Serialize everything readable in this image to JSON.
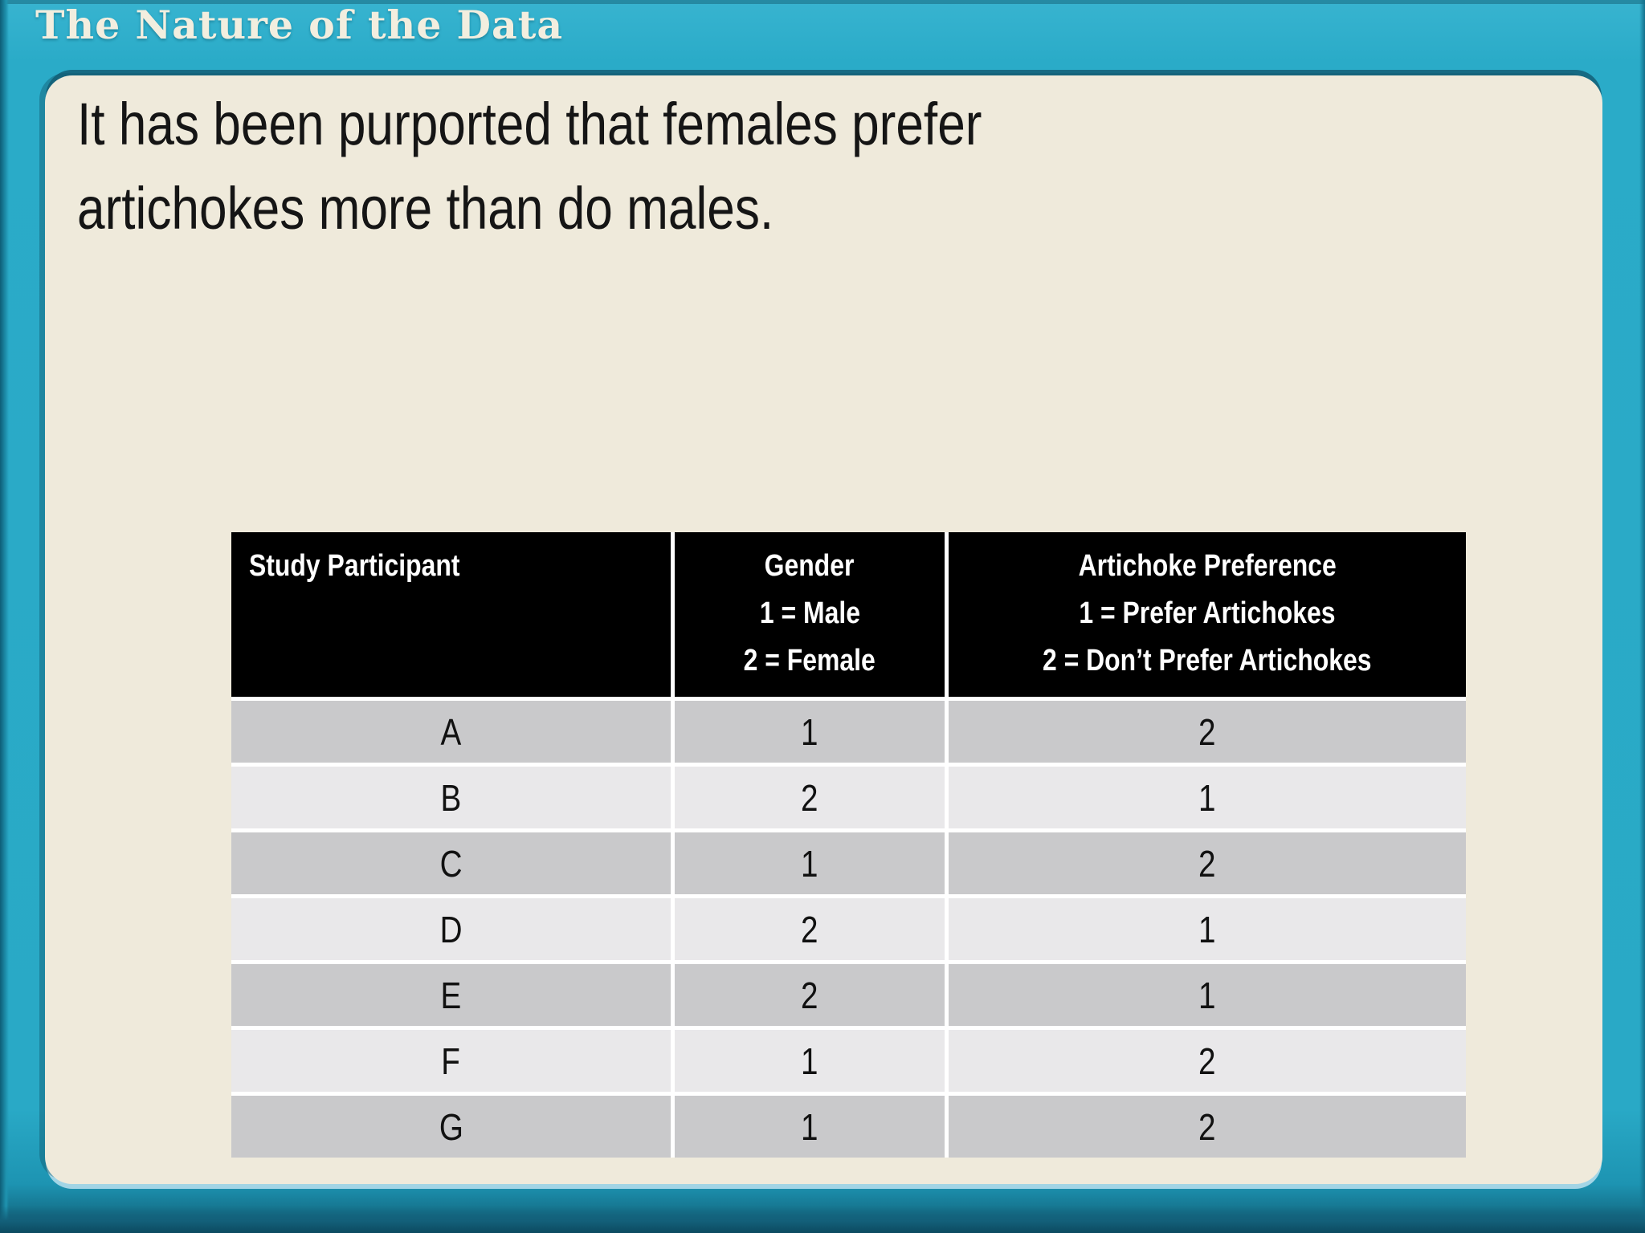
{
  "slide": {
    "title": "The Nature of the Data",
    "body_line1": "It has been purported that females prefer",
    "body_line2": "artichokes more than do males."
  },
  "table": {
    "columns": [
      {
        "header_lines": [
          "Study Participant"
        ]
      },
      {
        "header_lines": [
          "Gender",
          "1 = Male",
          "2 = Female"
        ]
      },
      {
        "header_lines": [
          "Artichoke Preference",
          "1 = Prefer Artichokes",
          "2 = Don’t Prefer Artichokes"
        ]
      }
    ],
    "rows": [
      {
        "participant": "A",
        "gender": "1",
        "preference": "2"
      },
      {
        "participant": "B",
        "gender": "2",
        "preference": "1"
      },
      {
        "participant": "C",
        "gender": "1",
        "preference": "2"
      },
      {
        "participant": "D",
        "gender": "2",
        "preference": "1"
      },
      {
        "participant": "E",
        "gender": "2",
        "preference": "1"
      },
      {
        "participant": "F",
        "gender": "1",
        "preference": "2"
      },
      {
        "participant": "G",
        "gender": "1",
        "preference": "2"
      }
    ]
  },
  "colors": {
    "frame_teal": "#2aabc8",
    "frame_dark_edge": "#0f586f",
    "panel_cream": "#efeadb",
    "title_cream": "#f2eedf",
    "header_bg": "#000000",
    "header_text": "#ffffff",
    "row_dark": "#c9c9cb",
    "row_light": "#e9e8ea",
    "body_text": "#151515"
  }
}
